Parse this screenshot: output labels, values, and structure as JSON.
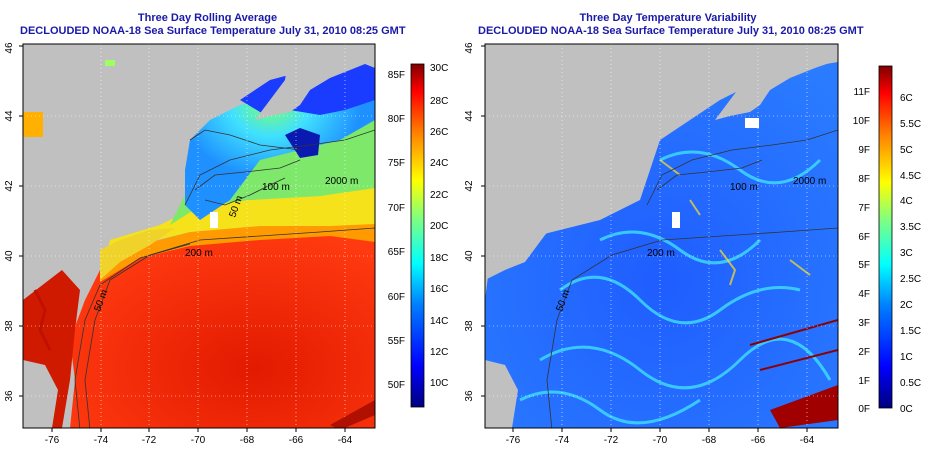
{
  "panels": [
    {
      "title": "Three Day Rolling Average",
      "subtitle": "DECLOUDED NOAA-18 Sea Surface Temperature July 31, 2010 08:25 GMT",
      "colorbar_left_labels": [
        "85F",
        "80F",
        "75F",
        "70F",
        "65F",
        "60F",
        "55F",
        "50F"
      ],
      "colorbar_right_labels": [
        "30C",
        "28C",
        "26C",
        "24C",
        "22C",
        "20C",
        "18C",
        "16C",
        "14C",
        "12C",
        "10C"
      ],
      "contour_labels": [
        "2000 m",
        "100 m",
        "50 m",
        "200 m",
        "50 m"
      ]
    },
    {
      "title": "Three Day Temperature Variability",
      "subtitle": "DECLOUDED NOAA-18 Sea Surface Temperature July 31, 2010 08:25 GMT",
      "colorbar_left_labels": [
        "11F",
        "10F",
        "9F",
        "8F",
        "7F",
        "6F",
        "5F",
        "4F",
        "3F",
        "2F",
        "1F",
        "0F"
      ],
      "colorbar_right_labels": [
        "6C",
        "5.5C",
        "5C",
        "4.5C",
        "4C",
        "3.5C",
        "3C",
        "2.5C",
        "2C",
        "1.5C",
        "1C",
        "0.5C",
        "0C"
      ],
      "contour_labels": [
        "2000 m",
        "100 m",
        "200 m",
        "50 m"
      ]
    }
  ],
  "x_ticks": [
    "-76",
    "-74",
    "-72",
    "-70",
    "-68",
    "-66",
    "-64"
  ],
  "y_ticks": [
    "46",
    "44",
    "42",
    "40",
    "38",
    "36"
  ],
  "colors": {
    "land": "#c0c0c0",
    "title_text": "#1a1aa8",
    "sst_scale": [
      "#00007f",
      "#0000ff",
      "#0080ff",
      "#00ffff",
      "#80ff80",
      "#ffff00",
      "#ff8000",
      "#ff0000",
      "#7f0000"
    ]
  }
}
